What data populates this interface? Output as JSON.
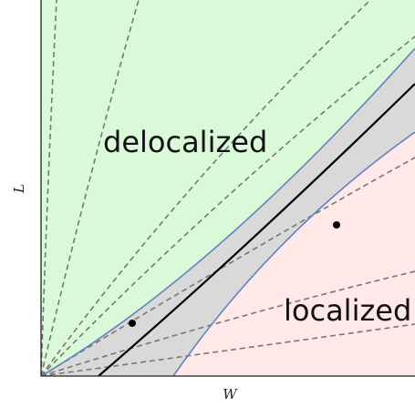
{
  "figure": {
    "regions": {
      "delocalized": {
        "label": "delocalized",
        "fill": "#d9f9d9"
      },
      "crossover": {
        "fill": "#d9d9d9"
      },
      "localized": {
        "label": "localized",
        "fill": "#ffe8e8"
      }
    },
    "axes": {
      "x_label": "W",
      "y_label": "L"
    },
    "colors": {
      "boundary": "#5f84bd",
      "critical_line": "#000000",
      "dashed": "#777777",
      "frame": "#222222"
    }
  }
}
